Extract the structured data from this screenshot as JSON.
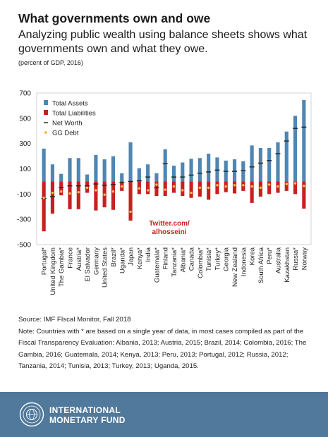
{
  "header": {
    "title": "What governments own and owe",
    "subtitle": "Analyzing public wealth using balance sheets shows what governments own and what they owe.",
    "units": "(percent of GDP, 2016)"
  },
  "chart_data": {
    "type": "bar",
    "ylim": [
      -500,
      700
    ],
    "yticks": [
      700,
      500,
      300,
      100,
      -100,
      -300,
      -500
    ],
    "grid": false,
    "legend_position": "top-left",
    "categories": [
      "Portugal*",
      "United Kingdom",
      "The Gambia*",
      "France",
      "Austria*",
      "El Salvador",
      "Germany",
      "United States",
      "Brazil*",
      "Uganda*",
      "Japan",
      "Kenya*",
      "India",
      "Guatemala*",
      "Finland",
      "Tanzania*",
      "Albania*",
      "Canada",
      "Colombia*",
      "Tunisia*",
      "Turkey*",
      "Georgia",
      "New Zealand",
      "Indonesia",
      "Korea",
      "South Africa",
      "Peru*",
      "Australia",
      "Kazakhstan",
      "Russia*",
      "Norway"
    ],
    "series": [
      {
        "name": "Total Assets",
        "kind": "bar",
        "color": "#4f86b2",
        "values": [
          260,
          135,
          60,
          185,
          185,
          55,
          210,
          175,
          200,
          65,
          310,
          105,
          135,
          65,
          255,
          125,
          150,
          180,
          185,
          220,
          190,
          165,
          175,
          160,
          285,
          265,
          265,
          310,
          395,
          520,
          645
        ]
      },
      {
        "name": "Total Liabilities",
        "kind": "bar",
        "color": "#c8201f",
        "values": [
          -395,
          -255,
          -110,
          -220,
          -220,
          -90,
          -230,
          -205,
          -225,
          -75,
          -310,
          -100,
          -100,
          -115,
          -115,
          -90,
          -115,
          -130,
          -120,
          -145,
          -100,
          -85,
          -95,
          -75,
          -170,
          -120,
          -100,
          -90,
          -75,
          -100,
          -215
        ]
      },
      {
        "name": "Net Worth",
        "kind": "dash",
        "color": "#222222",
        "values": [
          -135,
          -120,
          -50,
          -35,
          -35,
          -35,
          -20,
          -30,
          -25,
          -10,
          0,
          5,
          35,
          -50,
          140,
          35,
          35,
          50,
          65,
          75,
          90,
          80,
          80,
          85,
          115,
          145,
          165,
          220,
          320,
          420,
          430
        ]
      },
      {
        "name": "GG Debt",
        "kind": "dot",
        "color": "#f2c14e",
        "values": [
          -130,
          -90,
          -80,
          -95,
          -85,
          -50,
          -70,
          -105,
          -80,
          -40,
          -240,
          -55,
          -70,
          -25,
          -65,
          -40,
          -70,
          -90,
          -50,
          -50,
          -30,
          -40,
          -30,
          -30,
          -40,
          -50,
          -25,
          -40,
          -20,
          -15,
          -35
        ]
      }
    ],
    "annotation": {
      "line1": "Twitter.com/",
      "line2": "alhosseini",
      "color": "#cc1f1f"
    }
  },
  "footer": {
    "source": "Source: IMF FIscal Monitor, Fall 2018",
    "note": "Note: Countries with * are based on a single year of data, in most cases compiled as part of the Fiscal Transparency Evaluation: Albania, 2013; Austria, 2015; Brazil, 2014; Colombia, 2016; The Gambia, 2016; Guatemala, 2014; Kenya, 2013; Peru, 2013; Portugal, 2012; Russia, 2012; Tanzania, 2014; Tunisia, 2013; Turkey, 2013; Uganda, 2015."
  },
  "logo": {
    "line1": "INTERNATIONAL",
    "line2": "MONETARY FUND",
    "band_color": "#50799b",
    "seal_icon": "imf-seal-icon"
  }
}
